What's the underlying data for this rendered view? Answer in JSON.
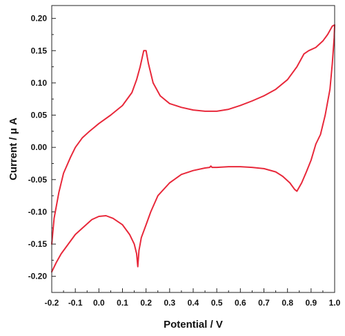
{
  "chart_data": {
    "type": "line",
    "xlabel": "Potential / V",
    "ylabel": "Current / μ A",
    "xlim": [
      -0.2,
      1.0
    ],
    "ylim": [
      -0.225,
      0.22
    ],
    "x_ticks": [
      "-0.2",
      "-0.1",
      "0.0",
      "0.1",
      "0.2",
      "0.3",
      "0.4",
      "0.5",
      "0.6",
      "0.7",
      "0.8",
      "0.9",
      "1.0"
    ],
    "y_ticks": [
      "-0.20",
      "-0.15",
      "-0.10",
      "-0.05",
      "0.00",
      "0.05",
      "0.10",
      "0.15",
      "0.20"
    ],
    "grid": false,
    "legend": "none",
    "series": [
      {
        "color": "#e8283a",
        "x": [
          -0.2,
          -0.19,
          -0.17,
          -0.15,
          -0.12,
          -0.1,
          -0.07,
          -0.04,
          -0.03,
          0.0,
          0.05,
          0.1,
          0.14,
          0.16,
          0.175,
          0.19,
          0.2,
          0.21,
          0.23,
          0.26,
          0.3,
          0.35,
          0.4,
          0.45,
          0.5,
          0.55,
          0.6,
          0.65,
          0.7,
          0.75,
          0.8,
          0.84,
          0.87,
          0.89,
          0.92,
          0.95,
          0.97,
          0.99,
          1.0,
          0.998,
          0.99,
          0.98,
          0.96,
          0.94,
          0.92,
          0.9,
          0.88,
          0.86,
          0.84,
          0.83,
          0.81,
          0.78,
          0.75,
          0.7,
          0.65,
          0.6,
          0.55,
          0.5,
          0.48,
          0.475,
          0.47,
          0.45,
          0.4,
          0.35,
          0.3,
          0.25,
          0.22,
          0.2,
          0.18,
          0.17,
          0.165,
          0.16,
          0.15,
          0.13,
          0.1,
          0.06,
          0.03,
          0.0,
          -0.03,
          -0.06,
          -0.1,
          -0.13,
          -0.16,
          -0.18,
          -0.2
        ],
        "y": [
          -0.15,
          -0.11,
          -0.07,
          -0.04,
          -0.015,
          0.0,
          0.015,
          0.025,
          0.028,
          0.037,
          0.05,
          0.065,
          0.085,
          0.105,
          0.125,
          0.15,
          0.15,
          0.13,
          0.1,
          0.08,
          0.068,
          0.062,
          0.058,
          0.056,
          0.056,
          0.059,
          0.065,
          0.072,
          0.08,
          0.09,
          0.105,
          0.125,
          0.145,
          0.15,
          0.155,
          0.165,
          0.175,
          0.188,
          0.19,
          0.17,
          0.13,
          0.09,
          0.05,
          0.02,
          0.005,
          -0.02,
          -0.038,
          -0.055,
          -0.068,
          -0.065,
          -0.055,
          -0.045,
          -0.038,
          -0.033,
          -0.031,
          -0.03,
          -0.03,
          -0.031,
          -0.031,
          -0.029,
          -0.031,
          -0.032,
          -0.036,
          -0.042,
          -0.055,
          -0.075,
          -0.1,
          -0.12,
          -0.14,
          -0.16,
          -0.185,
          -0.165,
          -0.15,
          -0.135,
          -0.12,
          -0.11,
          -0.106,
          -0.107,
          -0.112,
          -0.122,
          -0.135,
          -0.15,
          -0.165,
          -0.178,
          -0.193
        ]
      }
    ]
  }
}
